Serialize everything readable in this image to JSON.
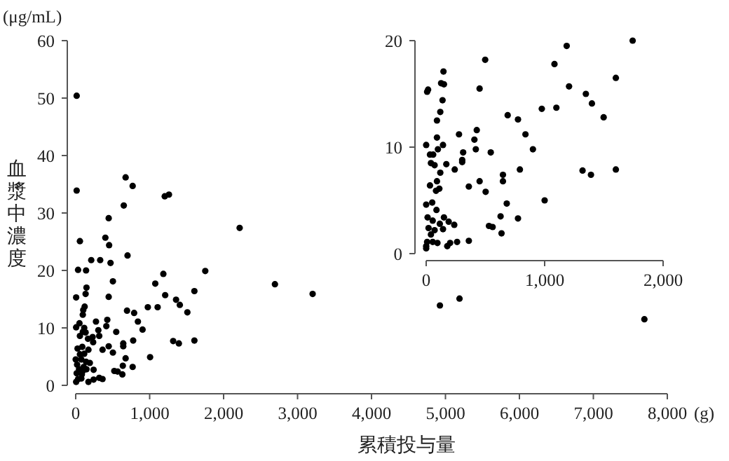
{
  "chart_data": [
    {
      "type": "scatter",
      "xlabel": "累積投与量",
      "ylabel": "血漿中濃度",
      "annotations": [
        "(μg/mL)",
        "(g)"
      ],
      "marker": "circle",
      "grid": false,
      "xlim": [
        0,
        8000
      ],
      "ylim": [
        0,
        60
      ],
      "xticks": [
        0,
        {
          "value": 1000,
          "label": "1,000"
        },
        {
          "value": 2000,
          "label": "2,000"
        },
        {
          "value": 3000,
          "label": "3,000"
        },
        {
          "value": 4000,
          "label": "4,000"
        },
        {
          "value": 5000,
          "label": "5,000"
        },
        {
          "value": 6000,
          "label": "6,000"
        },
        {
          "value": 7000,
          "label": "7,000"
        },
        {
          "value": 8000,
          "label": "8,000"
        }
      ],
      "yticks": [
        0,
        10,
        20,
        30,
        40,
        50,
        60
      ],
      "series": [
        {
          "color": "#000000",
          "x": [
            13,
            13,
            675,
            770,
            1204,
            1261,
            650,
            446,
            57,
            401,
            452,
            701,
            210,
            331,
            471,
            32,
            140,
            2217,
            2694,
            3204,
            1752,
            1185,
            503,
            1076,
            146,
            134,
            6,
            446,
            1210,
            1605,
            1357,
            1408,
            1510,
            975,
            1108,
            121,
            102,
            694,
            790,
            96,
            841,
            904,
            274,
            427,
            51,
            414,
            6,
            115,
            306,
            548,
            96,
            134,
            57,
            229,
            166,
            318,
            236,
            777,
            1318,
            1395,
            1605,
            643,
            643,
            446,
            363,
            25,
            89,
            172,
            503,
            57,
            115,
            1006,
            675,
            0,
            76,
            140,
            191,
            19,
            637,
            108,
            770,
            45,
            146,
            242,
            522,
            567,
            631,
            13,
            83,
            318,
            363,
            242,
            172,
            6,
            32,
            76,
            96,
            4925,
            5190,
            7690
          ],
          "values": [
            50.4,
            33.9,
            36.2,
            34.7,
            32.9,
            33.2,
            31.3,
            29.1,
            25.1,
            25.7,
            24.4,
            22.6,
            21.8,
            21.8,
            21.3,
            20.1,
            20.0,
            27.4,
            17.6,
            15.9,
            19.9,
            19.4,
            18.1,
            17.7,
            17.0,
            15.9,
            15.3,
            15.4,
            15.7,
            16.4,
            14.9,
            14.0,
            12.7,
            13.6,
            13.6,
            13.7,
            13.1,
            13.0,
            12.6,
            12.3,
            11.1,
            9.7,
            11.1,
            11.4,
            10.8,
            10.3,
            10.1,
            10.0,
            9.6,
            9.3,
            9.3,
            9.2,
            8.6,
            8.4,
            8.1,
            8.6,
            7.5,
            7.8,
            7.7,
            7.3,
            7.8,
            7.3,
            6.8,
            6.8,
            6.2,
            6.4,
            6.7,
            6.2,
            5.7,
            5.4,
            5.5,
            4.9,
            4.7,
            4.5,
            4.5,
            4.1,
            3.9,
            3.6,
            3.4,
            3.2,
            3.2,
            2.8,
            2.8,
            2.7,
            2.5,
            2.4,
            1.9,
            2.1,
            1.9,
            1.3,
            1.1,
            1.0,
            0.6,
            0.6,
            1.1,
            1.2,
            2.5,
            13.9,
            15.1,
            11.5
          ]
        }
      ]
    },
    {
      "type": "scatter",
      "marker": "circle",
      "grid": false,
      "xlim": [
        0,
        2000
      ],
      "ylim": [
        0,
        20
      ],
      "xticks": [
        0,
        {
          "value": 1000,
          "label": "1,000"
        },
        {
          "value": 2000,
          "label": "2,000"
        }
      ],
      "yticks": [
        0,
        10,
        20
      ],
      "series": [
        {
          "color": "#000000",
          "x": [
            1743,
            1186,
            498,
            1083,
            146,
            1601,
            1206,
            451,
            8,
            16,
            126,
            150,
            1348,
            1399,
            138,
            119,
            976,
            1099,
            688,
            775,
            1498,
            91,
            427,
            277,
            838,
            407,
            91,
            0,
            142,
            419,
            901,
            99,
            312,
            545,
            32,
            59,
            304,
            304,
            170,
            40,
            71,
            241,
            119,
            791,
            1320,
            1601,
            1391,
            648,
            648,
            451,
            91,
            360,
            32,
            111,
            83,
            502,
            1000,
            680,
            0,
            51,
            87,
            12,
            150,
            628,
            775,
            190,
            55,
            237,
            115,
            530,
            561,
            20,
            71,
            142,
            636,
            40,
            261,
            360,
            202,
            178,
            0,
            8,
            55,
            95,
            0
          ],
          "values": [
            20.0,
            19.5,
            18.2,
            17.8,
            17.1,
            16.5,
            15.7,
            15.5,
            15.2,
            15.4,
            16.0,
            15.9,
            15.0,
            14.1,
            14.4,
            13.3,
            13.6,
            13.7,
            13.0,
            12.6,
            12.8,
            12.5,
            11.6,
            11.2,
            11.2,
            10.7,
            10.9,
            10.2,
            10.2,
            9.8,
            9.8,
            9.8,
            9.5,
            9.5,
            9.3,
            9.3,
            8.8,
            8.6,
            8.4,
            8.5,
            8.3,
            7.9,
            7.6,
            7.9,
            7.8,
            7.9,
            7.4,
            7.4,
            6.8,
            6.8,
            6.8,
            6.3,
            6.4,
            6.1,
            5.9,
            5.8,
            5.0,
            4.7,
            4.6,
            4.8,
            4.1,
            3.4,
            3.4,
            3.5,
            3.3,
            3.0,
            3.1,
            2.7,
            2.8,
            2.6,
            2.5,
            2.4,
            2.2,
            2.3,
            1.9,
            1.8,
            1.1,
            1.2,
            1.0,
            0.7,
            0.7,
            1.1,
            1.1,
            1.0,
            0.5
          ]
        }
      ]
    }
  ]
}
